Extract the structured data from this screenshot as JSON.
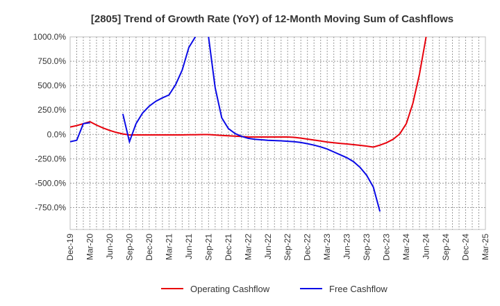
{
  "chart_data": {
    "type": "line",
    "title": "[2805]  Trend of Growth Rate (YoY) of 12-Month Moving Sum of Cashflows",
    "xlabel": "",
    "ylabel": "",
    "ylim": [
      -975,
      1000
    ],
    "y_ticks": [
      1000,
      750,
      500,
      250,
      0,
      -250,
      -500,
      -750
    ],
    "y_tick_labels": [
      "1000.0%",
      "750.0%",
      "500.0%",
      "250.0%",
      "0.0%",
      "-250.0%",
      "-500.0%",
      "-750.0%"
    ],
    "x_tick_labels": [
      "Dec-19",
      "Mar-20",
      "Jun-20",
      "Sep-20",
      "Dec-20",
      "Mar-21",
      "Jun-21",
      "Sep-21",
      "Dec-21",
      "Mar-22",
      "Jun-22",
      "Sep-22",
      "Dec-22",
      "Mar-23",
      "Jun-23",
      "Sep-23",
      "Dec-23",
      "Mar-24",
      "Jun-24",
      "Sep-24",
      "Dec-24",
      "Mar-25"
    ],
    "grid": true,
    "legend_position": "bottom",
    "series": [
      {
        "name": "Operating Cashflow",
        "color": "#e8000b",
        "points": [
          [
            "Dec-19",
            75
          ],
          [
            "Jan-20",
            90
          ],
          [
            "Feb-20",
            110
          ],
          [
            "Mar-20",
            130
          ],
          [
            "Apr-20",
            95
          ],
          [
            "May-20",
            65
          ],
          [
            "Jun-20",
            40
          ],
          [
            "Jul-20",
            20
          ],
          [
            "Aug-20",
            5
          ],
          [
            "Sep-20",
            -5
          ],
          [
            "Oct-20",
            -5
          ],
          [
            "Nov-20",
            -5
          ],
          [
            "Dec-20",
            -5
          ],
          [
            "Jan-21",
            -5
          ],
          [
            "Feb-21",
            -5
          ],
          [
            "Mar-21",
            -5
          ],
          [
            "Apr-21",
            -5
          ],
          [
            "May-21",
            -5
          ],
          [
            "Jun-21",
            -4
          ],
          [
            "Jul-21",
            -3
          ],
          [
            "Aug-21",
            -2
          ],
          [
            "Sep-21",
            -2
          ],
          [
            "Oct-21",
            -6
          ],
          [
            "Nov-21",
            -10
          ],
          [
            "Dec-21",
            -14
          ],
          [
            "Jan-22",
            -18
          ],
          [
            "Feb-22",
            -22
          ],
          [
            "Mar-22",
            -26
          ],
          [
            "Apr-22",
            -27
          ],
          [
            "May-22",
            -27
          ],
          [
            "Jun-22",
            -27
          ],
          [
            "Jul-22",
            -27
          ],
          [
            "Aug-22",
            -27
          ],
          [
            "Sep-22",
            -27
          ],
          [
            "Oct-22",
            -30
          ],
          [
            "Nov-22",
            -38
          ],
          [
            "Dec-22",
            -48
          ],
          [
            "Jan-23",
            -58
          ],
          [
            "Feb-23",
            -68
          ],
          [
            "Mar-23",
            -78
          ],
          [
            "Apr-23",
            -86
          ],
          [
            "May-23",
            -92
          ],
          [
            "Jun-23",
            -98
          ],
          [
            "Jul-23",
            -105
          ],
          [
            "Aug-23",
            -112
          ],
          [
            "Sep-23",
            -120
          ],
          [
            "Oct-23",
            -130
          ],
          [
            "Nov-23",
            -110
          ],
          [
            "Dec-23",
            -85
          ],
          [
            "Jan-24",
            -50
          ],
          [
            "Feb-24",
            5
          ],
          [
            "Mar-24",
            110
          ],
          [
            "Apr-24",
            320
          ],
          [
            "May-24",
            620
          ],
          [
            "Jun-24",
            1000
          ]
        ]
      },
      {
        "name": "Free Cashflow",
        "color": "#0a0ae6",
        "segments": [
          [
            [
              "Dec-19",
              -75
            ],
            [
              "Jan-20",
              -60
            ],
            [
              "Feb-20",
              110
            ],
            [
              "Mar-20",
              120
            ]
          ],
          [
            [
              "Aug-20",
              210
            ],
            [
              "Sep-20",
              -75
            ],
            [
              "Oct-20",
              110
            ],
            [
              "Nov-20",
              220
            ],
            [
              "Dec-20",
              290
            ],
            [
              "Jan-21",
              340
            ],
            [
              "Feb-21",
              375
            ],
            [
              "Mar-21",
              405
            ],
            [
              "Apr-21",
              510
            ],
            [
              "May-21",
              660
            ],
            [
              "Jun-21",
              890
            ],
            [
              "Jul-21",
              1000
            ]
          ],
          [
            [
              "Sep-21",
              1000
            ],
            [
              "Oct-21",
              480
            ],
            [
              "Nov-21",
              170
            ],
            [
              "Dec-21",
              60
            ],
            [
              "Jan-22",
              10
            ],
            [
              "Feb-22",
              -20
            ],
            [
              "Mar-22",
              -40
            ],
            [
              "Apr-22",
              -50
            ],
            [
              "May-22",
              -55
            ],
            [
              "Jun-22",
              -60
            ],
            [
              "Jul-22",
              -63
            ],
            [
              "Aug-22",
              -66
            ],
            [
              "Sep-22",
              -70
            ],
            [
              "Oct-22",
              -75
            ],
            [
              "Nov-22",
              -83
            ],
            [
              "Dec-22",
              -95
            ],
            [
              "Jan-23",
              -110
            ],
            [
              "Feb-23",
              -128
            ],
            [
              "Mar-23",
              -150
            ],
            [
              "Apr-23",
              -180
            ],
            [
              "May-23",
              -210
            ],
            [
              "Jun-23",
              -240
            ],
            [
              "Jul-23",
              -280
            ],
            [
              "Aug-23",
              -340
            ],
            [
              "Sep-23",
              -420
            ],
            [
              "Oct-23",
              -540
            ],
            [
              "Nov-23",
              -790
            ]
          ]
        ]
      }
    ]
  }
}
